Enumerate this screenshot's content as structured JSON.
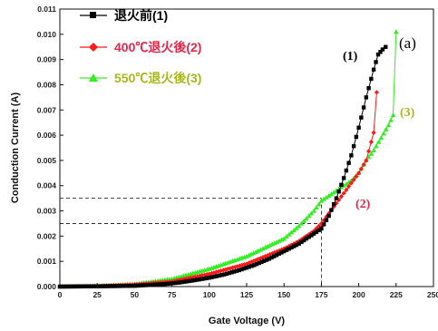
{
  "chart_data": {
    "type": "scatter",
    "xlabel": "Gate Voltage (V)",
    "ylabel": "Conduction Current (A)",
    "xlim": [
      0,
      250
    ],
    "ylim": [
      0,
      0.011
    ],
    "x_ticks": [
      "0",
      "25",
      "50",
      "75",
      "100",
      "125",
      "150",
      "175",
      "200",
      "225",
      "250"
    ],
    "y_ticks": [
      "0.000",
      "0.001",
      "0.002",
      "0.003",
      "0.004",
      "0.005",
      "0.006",
      "0.007",
      "0.008",
      "0.009",
      "0.010",
      "0.011"
    ],
    "grid": false,
    "legend_position": "top-left",
    "panel_label": "(a)",
    "colors": {
      "series1": "#000000",
      "series2": "#ff1a1a",
      "series3": "#33ee22",
      "label2": "#e8264a",
      "label3": "#a8b81a"
    },
    "series": [
      {
        "name": "退火前(1)",
        "label": "(1)",
        "marker": "square",
        "x": [
          0,
          25,
          50,
          70,
          80,
          90,
          100,
          110,
          120,
          130,
          140,
          150,
          160,
          165,
          170,
          175,
          180,
          185,
          190,
          195,
          200,
          205,
          210,
          213,
          216,
          218
        ],
        "y": [
          0.0,
          1e-05,
          3e-05,
          0.0001,
          0.00016,
          0.00025,
          0.00035,
          0.00048,
          0.00065,
          0.00085,
          0.0011,
          0.0014,
          0.0017,
          0.0019,
          0.0021,
          0.0023,
          0.0028,
          0.0035,
          0.0043,
          0.0052,
          0.0063,
          0.0075,
          0.0086,
          0.0092,
          0.0094,
          0.0095
        ]
      },
      {
        "name": "400℃退火後(2)",
        "label": "(2)",
        "marker": "diamond",
        "x": [
          0,
          25,
          50,
          75,
          100,
          125,
          150,
          160,
          170,
          175,
          180,
          185,
          190,
          195,
          200,
          205,
          210,
          212
        ],
        "y": [
          0.0,
          2e-05,
          8e-05,
          0.0002,
          0.0005,
          0.0009,
          0.0015,
          0.0018,
          0.0022,
          0.0025,
          0.0029,
          0.0033,
          0.0037,
          0.0041,
          0.0045,
          0.005,
          0.0061,
          0.0077
        ]
      },
      {
        "name": "550℃退火後(3)",
        "label": "(3)",
        "marker": "triangle",
        "x": [
          0,
          25,
          50,
          75,
          100,
          125,
          150,
          160,
          170,
          175,
          180,
          185,
          190,
          195,
          200,
          205,
          210,
          215,
          220,
          223,
          225
        ],
        "y": [
          0.0,
          3e-05,
          0.0001,
          0.0003,
          0.0007,
          0.0012,
          0.0019,
          0.0024,
          0.003,
          0.0034,
          0.0036,
          0.0038,
          0.004,
          0.0042,
          0.0045,
          0.005,
          0.0054,
          0.0059,
          0.0064,
          0.0068,
          0.0101
        ]
      }
    ]
  }
}
